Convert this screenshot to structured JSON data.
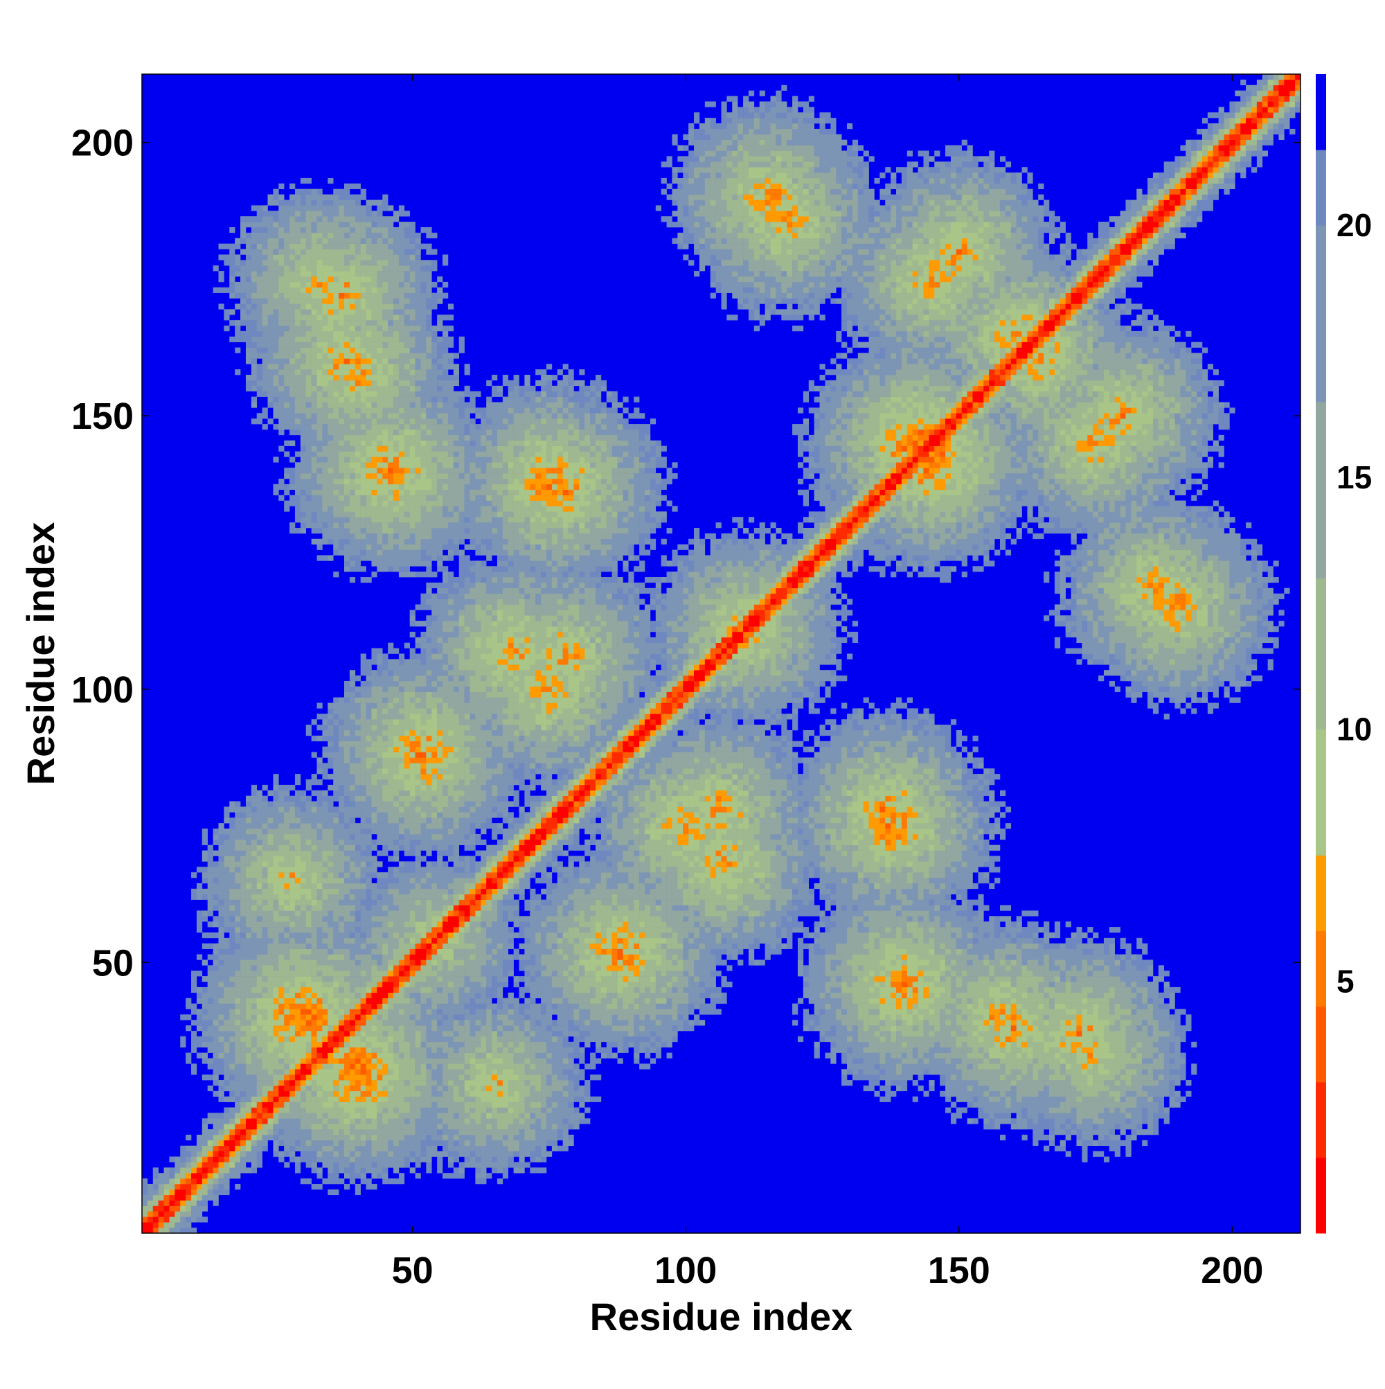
{
  "chart_data": {
    "type": "heatmap",
    "title": "",
    "xlabel": "Residue index",
    "ylabel": "Residue index",
    "n_residues": 212,
    "xlim": [
      1,
      212
    ],
    "ylim": [
      1,
      212
    ],
    "x_ticks": [
      50,
      100,
      150,
      200
    ],
    "y_ticks": [
      50,
      100,
      150,
      200
    ],
    "colorbar": {
      "ticks": [
        5,
        10,
        15,
        20
      ],
      "range": [
        0,
        23
      ],
      "levels": [
        {
          "max": 1.5,
          "color": "#ff0000"
        },
        {
          "max": 3.0,
          "color": "#ff2a00"
        },
        {
          "max": 4.5,
          "color": "#ff5a00"
        },
        {
          "max": 6.0,
          "color": "#ff7a00"
        },
        {
          "max": 7.5,
          "color": "#ff9a00"
        },
        {
          "max": 10.0,
          "color": "#a9c588"
        },
        {
          "max": 13.0,
          "color": "#9fb890"
        },
        {
          "max": 16.5,
          "color": "#92a7a0"
        },
        {
          "max": 20.0,
          "color": "#7d95b5"
        },
        {
          "max": 21.5,
          "color": "#6f88bf"
        },
        {
          "max": 23.0,
          "color": "#0000f0"
        }
      ],
      "background_color": "#0000f0"
    },
    "description_of_values": "Pairwise residue distance map (Angstrom). Symmetric about the diagonal; small distances along the diagonal and in contact clusters.",
    "contact_clusters": [
      {
        "i": 30,
        "j": 40,
        "d": 4
      },
      {
        "i": 40,
        "j": 30,
        "d": 4
      },
      {
        "i": 28,
        "j": 65,
        "d": 7
      },
      {
        "i": 65,
        "j": 28,
        "d": 7
      },
      {
        "i": 45,
        "j": 38,
        "d": 5
      },
      {
        "i": 55,
        "j": 52,
        "d": 6
      },
      {
        "i": 52,
        "j": 88,
        "d": 5
      },
      {
        "i": 88,
        "j": 52,
        "d": 5
      },
      {
        "i": 46,
        "j": 140,
        "d": 5
      },
      {
        "i": 140,
        "j": 46,
        "d": 5
      },
      {
        "i": 38,
        "j": 160,
        "d": 6
      },
      {
        "i": 160,
        "j": 38,
        "d": 6
      },
      {
        "i": 33,
        "j": 175,
        "d": 7
      },
      {
        "i": 175,
        "j": 33,
        "d": 7
      },
      {
        "i": 77,
        "j": 137,
        "d": 5
      },
      {
        "i": 137,
        "j": 77,
        "d": 5
      },
      {
        "i": 78,
        "j": 106,
        "d": 6
      },
      {
        "i": 106,
        "j": 78,
        "d": 6
      },
      {
        "i": 100,
        "j": 75,
        "d": 6
      },
      {
        "i": 75,
        "j": 100,
        "d": 6
      },
      {
        "i": 107,
        "j": 68,
        "d": 6
      },
      {
        "i": 68,
        "j": 107,
        "d": 6
      },
      {
        "i": 112,
        "j": 110,
        "d": 5
      },
      {
        "i": 118,
        "j": 186,
        "d": 6
      },
      {
        "i": 186,
        "j": 118,
        "d": 6
      },
      {
        "i": 140,
        "j": 48,
        "d": 5
      },
      {
        "i": 138,
        "j": 75,
        "d": 5
      },
      {
        "i": 75,
        "j": 138,
        "d": 5
      },
      {
        "i": 142,
        "j": 145,
        "d": 4
      },
      {
        "i": 158,
        "j": 40,
        "d": 6
      },
      {
        "i": 40,
        "j": 158,
        "d": 6
      },
      {
        "i": 172,
        "j": 37,
        "d": 6
      },
      {
        "i": 37,
        "j": 172,
        "d": 6
      },
      {
        "i": 150,
        "j": 180,
        "d": 6
      },
      {
        "i": 180,
        "j": 150,
        "d": 6
      },
      {
        "i": 160,
        "j": 165,
        "d": 6
      },
      {
        "i": 190,
        "j": 115,
        "d": 6
      },
      {
        "i": 115,
        "j": 190,
        "d": 6
      },
      {
        "i": 175,
        "j": 145,
        "d": 6
      },
      {
        "i": 145,
        "j": 175,
        "d": 6
      }
    ]
  }
}
